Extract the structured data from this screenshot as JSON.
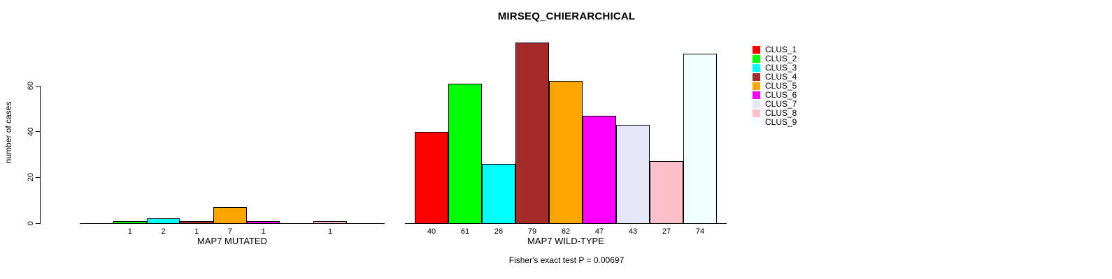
{
  "chart_data": {
    "type": "bar",
    "title": "MIRSEQ_CHIERARCHICAL",
    "ylabel": "number of cases",
    "ylim": [
      0,
      60
    ],
    "yticks": [
      0,
      20,
      40,
      60
    ],
    "grid": "off",
    "legend_position": "top-right",
    "legend_items": [
      {
        "label": "CLUS_1",
        "color": "#ff0000"
      },
      {
        "label": "CLUS_2",
        "color": "#00ff00"
      },
      {
        "label": "CLUS_3",
        "color": "#00ffff"
      },
      {
        "label": "CLUS_4",
        "color": "#a52a2a"
      },
      {
        "label": "CLUS_5",
        "color": "#ffa500"
      },
      {
        "label": "CLUS_6",
        "color": "#ff00ff"
      },
      {
        "label": "CLUS_7",
        "color": "#e6e6fa"
      },
      {
        "label": "CLUS_8",
        "color": "#ffc0cb"
      },
      {
        "label": "CLUS_9",
        "color": "#f0ffff"
      }
    ],
    "series": [
      {
        "name": "MAP7 MUTATED",
        "values": [
          0,
          1,
          2,
          1,
          7,
          1,
          0,
          1,
          0
        ]
      },
      {
        "name": "MAP7 WILD-TYPE",
        "values": [
          40,
          61,
          26,
          79,
          62,
          47,
          43,
          27,
          74
        ]
      }
    ],
    "bar_label_rule": "value shown under each bar only when value > 0",
    "annotation": "Fisher's exact test P = 0.00697"
  }
}
